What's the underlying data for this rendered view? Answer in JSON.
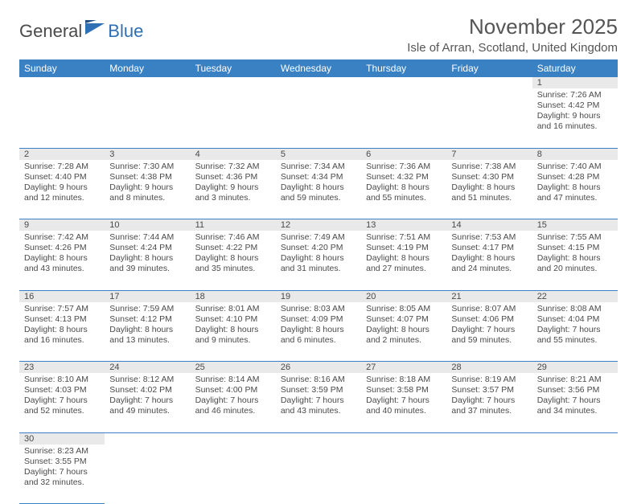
{
  "logo": {
    "text1": "General",
    "text2": "Blue"
  },
  "title": "November 2025",
  "location": "Isle of Arran, Scotland, United Kingdom",
  "columns": [
    "Sunday",
    "Monday",
    "Tuesday",
    "Wednesday",
    "Thursday",
    "Friday",
    "Saturday"
  ],
  "header_bg": "#3a81c4",
  "header_fg": "#ffffff",
  "daynum_bg": "#e9e9e9",
  "rule_color": "#3a81c4",
  "weeks": [
    [
      null,
      null,
      null,
      null,
      null,
      null,
      {
        "n": "1",
        "sunrise": "7:26 AM",
        "sunset": "4:42 PM",
        "dl1": "9 hours",
        "dl2": "and 16 minutes."
      }
    ],
    [
      {
        "n": "2",
        "sunrise": "7:28 AM",
        "sunset": "4:40 PM",
        "dl1": "9 hours",
        "dl2": "and 12 minutes."
      },
      {
        "n": "3",
        "sunrise": "7:30 AM",
        "sunset": "4:38 PM",
        "dl1": "9 hours",
        "dl2": "and 8 minutes."
      },
      {
        "n": "4",
        "sunrise": "7:32 AM",
        "sunset": "4:36 PM",
        "dl1": "9 hours",
        "dl2": "and 3 minutes."
      },
      {
        "n": "5",
        "sunrise": "7:34 AM",
        "sunset": "4:34 PM",
        "dl1": "8 hours",
        "dl2": "and 59 minutes."
      },
      {
        "n": "6",
        "sunrise": "7:36 AM",
        "sunset": "4:32 PM",
        "dl1": "8 hours",
        "dl2": "and 55 minutes."
      },
      {
        "n": "7",
        "sunrise": "7:38 AM",
        "sunset": "4:30 PM",
        "dl1": "8 hours",
        "dl2": "and 51 minutes."
      },
      {
        "n": "8",
        "sunrise": "7:40 AM",
        "sunset": "4:28 PM",
        "dl1": "8 hours",
        "dl2": "and 47 minutes."
      }
    ],
    [
      {
        "n": "9",
        "sunrise": "7:42 AM",
        "sunset": "4:26 PM",
        "dl1": "8 hours",
        "dl2": "and 43 minutes."
      },
      {
        "n": "10",
        "sunrise": "7:44 AM",
        "sunset": "4:24 PM",
        "dl1": "8 hours",
        "dl2": "and 39 minutes."
      },
      {
        "n": "11",
        "sunrise": "7:46 AM",
        "sunset": "4:22 PM",
        "dl1": "8 hours",
        "dl2": "and 35 minutes."
      },
      {
        "n": "12",
        "sunrise": "7:49 AM",
        "sunset": "4:20 PM",
        "dl1": "8 hours",
        "dl2": "and 31 minutes."
      },
      {
        "n": "13",
        "sunrise": "7:51 AM",
        "sunset": "4:19 PM",
        "dl1": "8 hours",
        "dl2": "and 27 minutes."
      },
      {
        "n": "14",
        "sunrise": "7:53 AM",
        "sunset": "4:17 PM",
        "dl1": "8 hours",
        "dl2": "and 24 minutes."
      },
      {
        "n": "15",
        "sunrise": "7:55 AM",
        "sunset": "4:15 PM",
        "dl1": "8 hours",
        "dl2": "and 20 minutes."
      }
    ],
    [
      {
        "n": "16",
        "sunrise": "7:57 AM",
        "sunset": "4:13 PM",
        "dl1": "8 hours",
        "dl2": "and 16 minutes."
      },
      {
        "n": "17",
        "sunrise": "7:59 AM",
        "sunset": "4:12 PM",
        "dl1": "8 hours",
        "dl2": "and 13 minutes."
      },
      {
        "n": "18",
        "sunrise": "8:01 AM",
        "sunset": "4:10 PM",
        "dl1": "8 hours",
        "dl2": "and 9 minutes."
      },
      {
        "n": "19",
        "sunrise": "8:03 AM",
        "sunset": "4:09 PM",
        "dl1": "8 hours",
        "dl2": "and 6 minutes."
      },
      {
        "n": "20",
        "sunrise": "8:05 AM",
        "sunset": "4:07 PM",
        "dl1": "8 hours",
        "dl2": "and 2 minutes."
      },
      {
        "n": "21",
        "sunrise": "8:07 AM",
        "sunset": "4:06 PM",
        "dl1": "7 hours",
        "dl2": "and 59 minutes."
      },
      {
        "n": "22",
        "sunrise": "8:08 AM",
        "sunset": "4:04 PM",
        "dl1": "7 hours",
        "dl2": "and 55 minutes."
      }
    ],
    [
      {
        "n": "23",
        "sunrise": "8:10 AM",
        "sunset": "4:03 PM",
        "dl1": "7 hours",
        "dl2": "and 52 minutes."
      },
      {
        "n": "24",
        "sunrise": "8:12 AM",
        "sunset": "4:02 PM",
        "dl1": "7 hours",
        "dl2": "and 49 minutes."
      },
      {
        "n": "25",
        "sunrise": "8:14 AM",
        "sunset": "4:00 PM",
        "dl1": "7 hours",
        "dl2": "and 46 minutes."
      },
      {
        "n": "26",
        "sunrise": "8:16 AM",
        "sunset": "3:59 PM",
        "dl1": "7 hours",
        "dl2": "and 43 minutes."
      },
      {
        "n": "27",
        "sunrise": "8:18 AM",
        "sunset": "3:58 PM",
        "dl1": "7 hours",
        "dl2": "and 40 minutes."
      },
      {
        "n": "28",
        "sunrise": "8:19 AM",
        "sunset": "3:57 PM",
        "dl1": "7 hours",
        "dl2": "and 37 minutes."
      },
      {
        "n": "29",
        "sunrise": "8:21 AM",
        "sunset": "3:56 PM",
        "dl1": "7 hours",
        "dl2": "and 34 minutes."
      }
    ],
    [
      {
        "n": "30",
        "sunrise": "8:23 AM",
        "sunset": "3:55 PM",
        "dl1": "7 hours",
        "dl2": "and 32 minutes."
      },
      null,
      null,
      null,
      null,
      null,
      null
    ]
  ]
}
